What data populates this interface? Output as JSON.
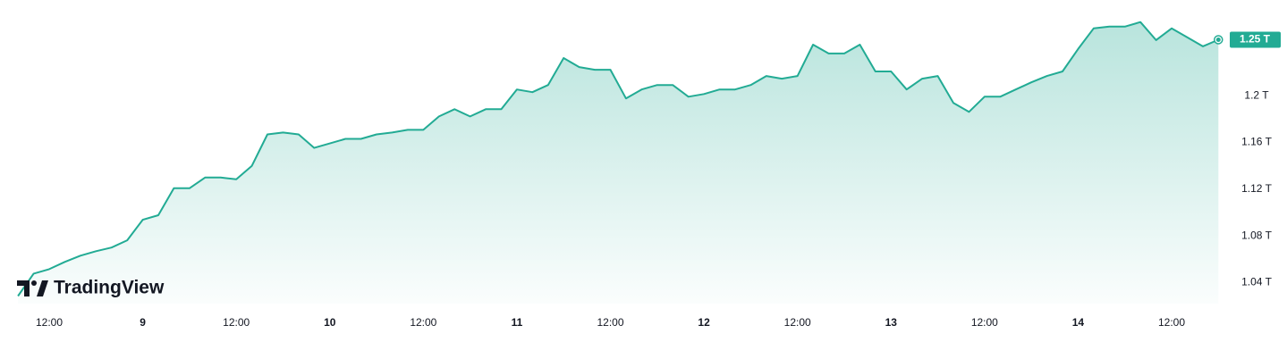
{
  "chart_data": {
    "type": "area",
    "watermark": "TradingView",
    "color": "#22ab94",
    "grid": false,
    "categories": [
      null,
      null,
      "12:00",
      null,
      null,
      null,
      null,
      null,
      "9",
      null,
      null,
      null,
      null,
      null,
      "12:00",
      null,
      null,
      null,
      null,
      null,
      "10",
      null,
      null,
      null,
      null,
      null,
      "12:00",
      null,
      null,
      null,
      null,
      null,
      "11",
      null,
      null,
      null,
      null,
      null,
      "12:00",
      null,
      null,
      null,
      null,
      null,
      "12",
      null,
      null,
      null,
      null,
      null,
      "12:00",
      null,
      null,
      null,
      null,
      null,
      "13",
      null,
      null,
      null,
      null,
      null,
      "12:00",
      null,
      null,
      null,
      null,
      null,
      "14",
      null,
      null,
      null,
      null,
      null,
      "12:00",
      null,
      null,
      null
    ],
    "values": [
      1.0285,
      1.0477,
      1.0515,
      1.0577,
      1.0631,
      1.0669,
      1.07,
      1.0762,
      1.0938,
      1.0977,
      1.1208,
      1.1208,
      1.13,
      1.13,
      1.1285,
      1.14,
      1.1669,
      1.1685,
      1.1669,
      1.1554,
      1.1592,
      1.1631,
      1.1631,
      1.1669,
      1.1685,
      1.1708,
      1.1708,
      1.1823,
      1.1885,
      1.1823,
      1.1885,
      1.1885,
      1.2054,
      1.2031,
      1.2092,
      1.2323,
      1.2246,
      1.2223,
      1.2223,
      1.1977,
      1.2054,
      1.2092,
      1.2092,
      1.1992,
      1.2015,
      1.2054,
      1.2054,
      1.2092,
      1.2169,
      1.2146,
      1.2169,
      1.2438,
      1.2362,
      1.2362,
      1.2438,
      1.2208,
      1.2208,
      1.2054,
      1.2146,
      1.2169,
      1.1938,
      1.1862,
      1.1992,
      1.1992,
      1.2054,
      1.2115,
      1.2169,
      1.2208,
      1.24,
      1.2577,
      1.2592,
      1.2592,
      1.2631,
      1.2477,
      1.2577,
      1.25,
      1.2423,
      1.248
    ],
    "last_value_label": "1.25 T",
    "ylim": [
      1.022,
      1.282
    ],
    "yticks": [
      {
        "value": 1.04,
        "label": "1.04 T"
      },
      {
        "value": 1.08,
        "label": "1.08 T"
      },
      {
        "value": 1.12,
        "label": "1.12 T"
      },
      {
        "value": 1.16,
        "label": "1.16 T"
      },
      {
        "value": 1.2,
        "label": "1.2 T"
      }
    ]
  }
}
